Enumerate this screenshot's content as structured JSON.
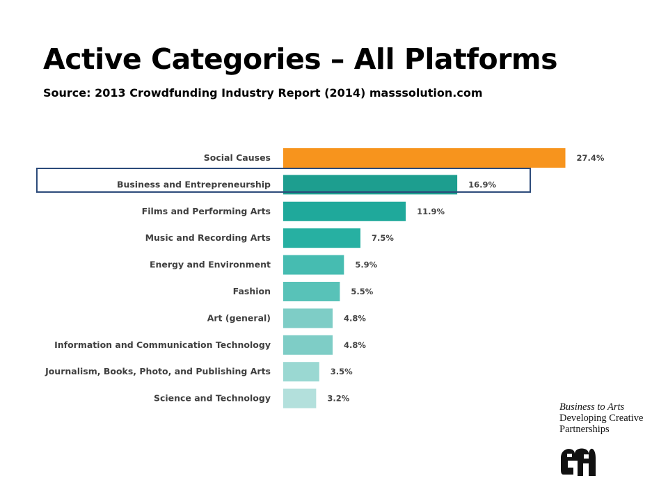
{
  "slide": {
    "title": "Active Categories – All Platforms",
    "subtitle": "Source: 2013 Crowdfunding Industry Report (2014) masssolution.com"
  },
  "chart_data": {
    "type": "bar",
    "orientation": "horizontal",
    "categories": [
      "Social Causes",
      "Business and Entrepreneurship",
      "Films and Performing Arts",
      "Music and Recording Arts",
      "Energy and Environment",
      "Fashion",
      "Art (general)",
      "Information and Communication Technology",
      "Journalism, Books, Photo, and Publishing Arts",
      "Science and Technology"
    ],
    "values": [
      27.4,
      16.9,
      11.9,
      7.5,
      5.9,
      5.5,
      4.8,
      4.8,
      3.5,
      3.2
    ],
    "value_labels": [
      "27.4%",
      "16.9%",
      "11.9%",
      "7.5%",
      "5.9%",
      "5.5%",
      "4.8%",
      "4.8%",
      "3.5%",
      "3.2%"
    ],
    "colors": [
      "#f7941d",
      "#1d9e8f",
      "#1fa99b",
      "#27b0a2",
      "#46bcb1",
      "#58c2b8",
      "#7ecdc6",
      "#7ecdc6",
      "#9ad8d2",
      "#b3e0dc"
    ],
    "highlighted_category": "Business and Entrepreneurship",
    "highlight_color": "#2c4a7a",
    "grid": false,
    "legend": false
  },
  "logo": {
    "line1": "Business to Arts",
    "line2": "Developing Creative",
    "line3": "Partnerships",
    "mark_color": "#111111"
  }
}
